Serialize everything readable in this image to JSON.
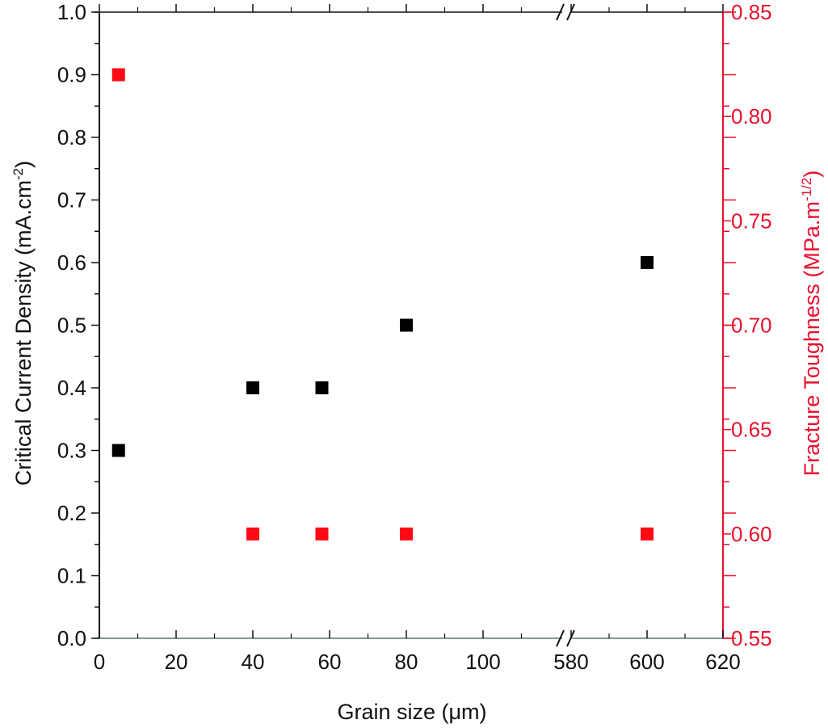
{
  "chart_data": {
    "type": "scatter",
    "title": "",
    "xlabel": "Grain size (μm)",
    "ylabel": "Critical Current Density (mA.cm-2)",
    "ylabel_parts": {
      "main": "Critical Current Density (mA.cm",
      "sup": "-2",
      "end": ")"
    },
    "y2label": "Fracture Toughness (MPa.m-1/2)",
    "y2label_parts": {
      "main": "Fracture Toughness (MPa.m",
      "sup": "-1/2",
      "end": ")"
    },
    "x_axis": {
      "broken": true,
      "segments": [
        [
          0,
          110
        ],
        [
          575,
          620
        ]
      ],
      "tick_labels": [
        "0",
        "20",
        "40",
        "60",
        "80",
        "100",
        "580",
        "600",
        "620"
      ]
    },
    "ylim": [
      0.0,
      1.0
    ],
    "y_tick_labels": [
      "0.0",
      "0.1",
      "0.2",
      "0.3",
      "0.4",
      "0.5",
      "0.6",
      "0.7",
      "0.8",
      "0.9",
      "1.0"
    ],
    "y2lim": [
      0.55,
      0.85
    ],
    "y2_tick_labels": [
      "0.55",
      "0.60",
      "0.65",
      "0.70",
      "0.75",
      "0.80",
      "0.85"
    ],
    "grid": false,
    "legend": null,
    "series": [
      {
        "name": "Critical Current Density",
        "axis": "left",
        "color": "#000000",
        "marker": "square",
        "x": [
          5,
          40,
          58,
          80,
          600
        ],
        "y": [
          0.3,
          0.4,
          0.4,
          0.5,
          0.6
        ]
      },
      {
        "name": "Fracture Toughness",
        "axis": "right",
        "color": "#ff0a14",
        "marker": "square",
        "x": [
          5,
          40,
          58,
          80,
          600
        ],
        "y": [
          0.82,
          0.6,
          0.6,
          0.6,
          0.6
        ]
      }
    ]
  },
  "colors": {
    "left_axis": "#111111",
    "right_axis": "#e8112d",
    "black_marker": "#000000",
    "red_marker": "#ff0a14"
  }
}
